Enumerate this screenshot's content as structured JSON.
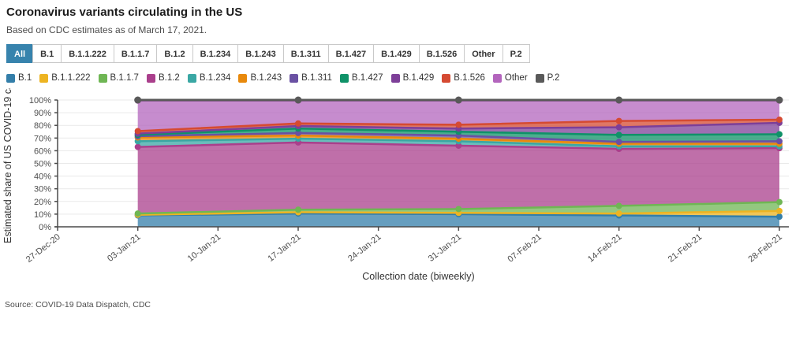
{
  "header": {
    "title": "Coronavirus variants circulating in the US",
    "subtitle": "Based on CDC estimates as of March 17, 2021."
  },
  "filter_tabs": {
    "active": "All",
    "items": [
      "All",
      "B.1",
      "B.1.1.222",
      "B.1.1.7",
      "B.1.2",
      "B.1.234",
      "B.1.243",
      "B.1.311",
      "B.1.427",
      "B.1.429",
      "B.1.526",
      "Other",
      "P.2"
    ],
    "active_bg_color": "#3783ad"
  },
  "chart_data": {
    "type": "area",
    "stacked": true,
    "title": "Coronavirus variants circulating in the US",
    "xlabel": "Collection date (biweekly)",
    "ylabel": "Estimated share of US COVID-19 ca",
    "ylim": [
      0,
      100
    ],
    "y_tick_step": 10,
    "y_tick_suffix": "%",
    "grid": true,
    "legend_position": "top",
    "x_axis_ticks": [
      "27-Dec-20",
      "03-Jan-21",
      "10-Jan-21",
      "17-Jan-21",
      "24-Jan-21",
      "31-Jan-21",
      "07-Feb-21",
      "14-Feb-21",
      "21-Feb-21",
      "28-Feb-21"
    ],
    "x": [
      "03-Jan-21",
      "17-Jan-21",
      "31-Jan-21",
      "14-Feb-21",
      "28-Feb-21"
    ],
    "series": [
      {
        "name": "B.1",
        "color": "#337ea9",
        "values": [
          9,
          10.5,
          10,
          9,
          8
        ]
      },
      {
        "name": "B.1.1.222",
        "color": "#edb422",
        "values": [
          0.5,
          1,
          1,
          1.5,
          4.5
        ]
      },
      {
        "name": "B.1.1.7",
        "color": "#6fb654",
        "values": [
          1,
          2,
          3,
          6,
          7
        ]
      },
      {
        "name": "B.1.2",
        "color": "#aa3f8c",
        "values": [
          52.5,
          53,
          50,
          45,
          42.5
        ]
      },
      {
        "name": "B.1.234",
        "color": "#3aa7a4",
        "values": [
          4.5,
          3,
          3.5,
          2,
          1.5
        ]
      },
      {
        "name": "B.1.243",
        "color": "#e8890c",
        "values": [
          3,
          2.5,
          2,
          2,
          2
        ]
      },
      {
        "name": "B.1.311",
        "color": "#6a51a3",
        "values": [
          1,
          2,
          2.5,
          1.5,
          2
        ]
      },
      {
        "name": "B.1.427",
        "color": "#0f9268",
        "values": [
          1,
          3.5,
          3,
          5.5,
          5.5
        ]
      },
      {
        "name": "B.1.429",
        "color": "#7d3f98",
        "values": [
          1,
          2,
          2.5,
          6,
          9
        ]
      },
      {
        "name": "B.1.526",
        "color": "#d54a32",
        "values": [
          2,
          2,
          3,
          5,
          2.5
        ]
      },
      {
        "name": "Other",
        "color": "#b365bd",
        "values": [
          24,
          18,
          19,
          16,
          15
        ]
      },
      {
        "name": "P.2",
        "color": "#595959",
        "values": [
          0.5,
          0.5,
          0.5,
          0.5,
          0.5
        ]
      }
    ]
  },
  "footer": {
    "source": "Source: COVID-19 Data Dispatch, CDC"
  }
}
